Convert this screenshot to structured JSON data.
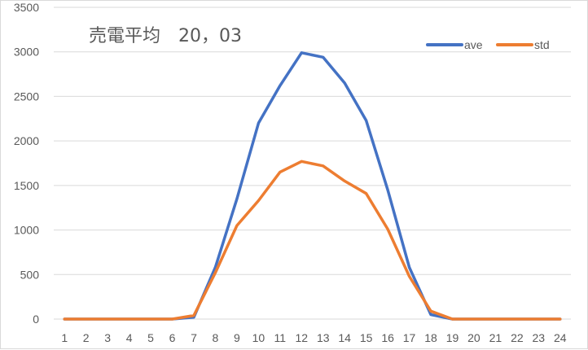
{
  "chart_data": {
    "type": "line",
    "title": "売電平均　20，03",
    "xlabel": "",
    "ylabel": "",
    "categories": [
      "1",
      "2",
      "3",
      "4",
      "5",
      "6",
      "7",
      "8",
      "9",
      "10",
      "11",
      "12",
      "13",
      "14",
      "15",
      "16",
      "17",
      "18",
      "19",
      "20",
      "21",
      "22",
      "23",
      "24"
    ],
    "ylim": [
      0,
      3500
    ],
    "yticks": [
      0,
      500,
      1000,
      1500,
      2000,
      2500,
      3000,
      3500
    ],
    "grid": true,
    "legend_position": "top-right",
    "series": [
      {
        "name": "ave",
        "color": "#4472C4",
        "values": [
          0,
          0,
          0,
          0,
          0,
          0,
          20,
          580,
          1350,
          2200,
          2620,
          2990,
          2940,
          2650,
          2230,
          1450,
          580,
          50,
          0,
          0,
          0,
          0,
          0,
          0
        ]
      },
      {
        "name": "std",
        "color": "#ED7D31",
        "values": [
          0,
          0,
          0,
          0,
          0,
          0,
          40,
          520,
          1050,
          1330,
          1650,
          1770,
          1720,
          1550,
          1410,
          1010,
          480,
          90,
          0,
          0,
          0,
          0,
          0,
          0
        ]
      }
    ]
  }
}
